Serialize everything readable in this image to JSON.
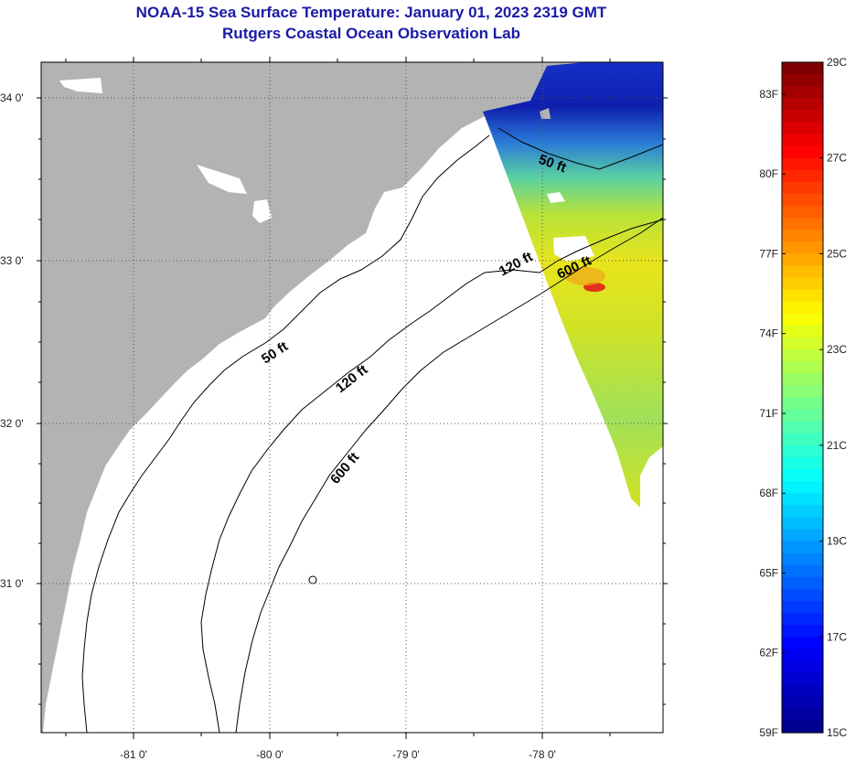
{
  "title": {
    "line1": "NOAA-15 Sea Surface Temperature:  January 01, 2023 2319 GMT",
    "line2": "Rutgers Coastal Ocean Observation Lab"
  },
  "map": {
    "lat_labels": [
      "34 0'",
      "33 0'",
      "32 0'",
      "31 0'"
    ],
    "lon_labels": [
      "-81 0'",
      "-80 0'",
      "-79 0'",
      "-78 0'"
    ],
    "contour_labels": {
      "c50_north": "50 ft",
      "c50": "50 ft",
      "c120": "120 ft",
      "c120_north": "120 ft",
      "c600": "600 ft",
      "c600_north": "600 ft"
    },
    "colors": {
      "land": "#b3b3b3",
      "water": "#ffffff",
      "grid": "#555555",
      "contour": "#000000"
    }
  },
  "colorbar": {
    "fahrenheit": [
      "83F",
      "80F",
      "77F",
      "74F",
      "71F",
      "68F",
      "65F",
      "62F",
      "59F"
    ],
    "celsius": [
      "29C",
      "27C",
      "25C",
      "23C",
      "21C",
      "19C",
      "17C",
      "15C"
    ],
    "range_c": [
      15,
      29
    ],
    "colors": [
      "#00008f",
      "#0000ff",
      "#007fff",
      "#00ffff",
      "#7fff7f",
      "#ffff00",
      "#ff7f00",
      "#ff0000",
      "#7f0000"
    ]
  }
}
